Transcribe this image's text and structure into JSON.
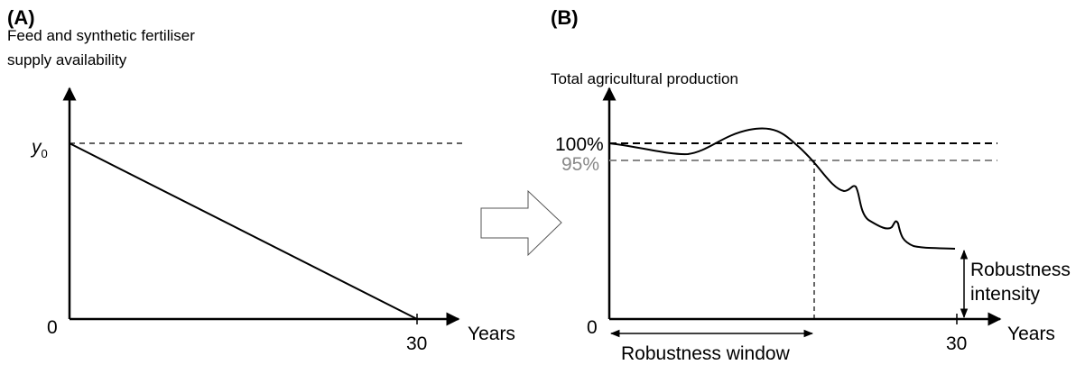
{
  "panel_a": {
    "tag": "(A)",
    "y_label": [
      "Feed and synthetic fertiliser",
      "supply availability"
    ],
    "y_marker": {
      "base": "y",
      "subscript": "0"
    },
    "origin": "0",
    "x_end": "30",
    "x_label": "Years"
  },
  "panel_b": {
    "tag": "(B)",
    "y_label": "Total agricultural production",
    "level_100": "100%",
    "level_95": "95%",
    "origin": "0",
    "x_end": "30",
    "x_label": "Years",
    "intensity_label": [
      "Robustness",
      "intensity"
    ],
    "window_label": "Robustness window"
  }
}
